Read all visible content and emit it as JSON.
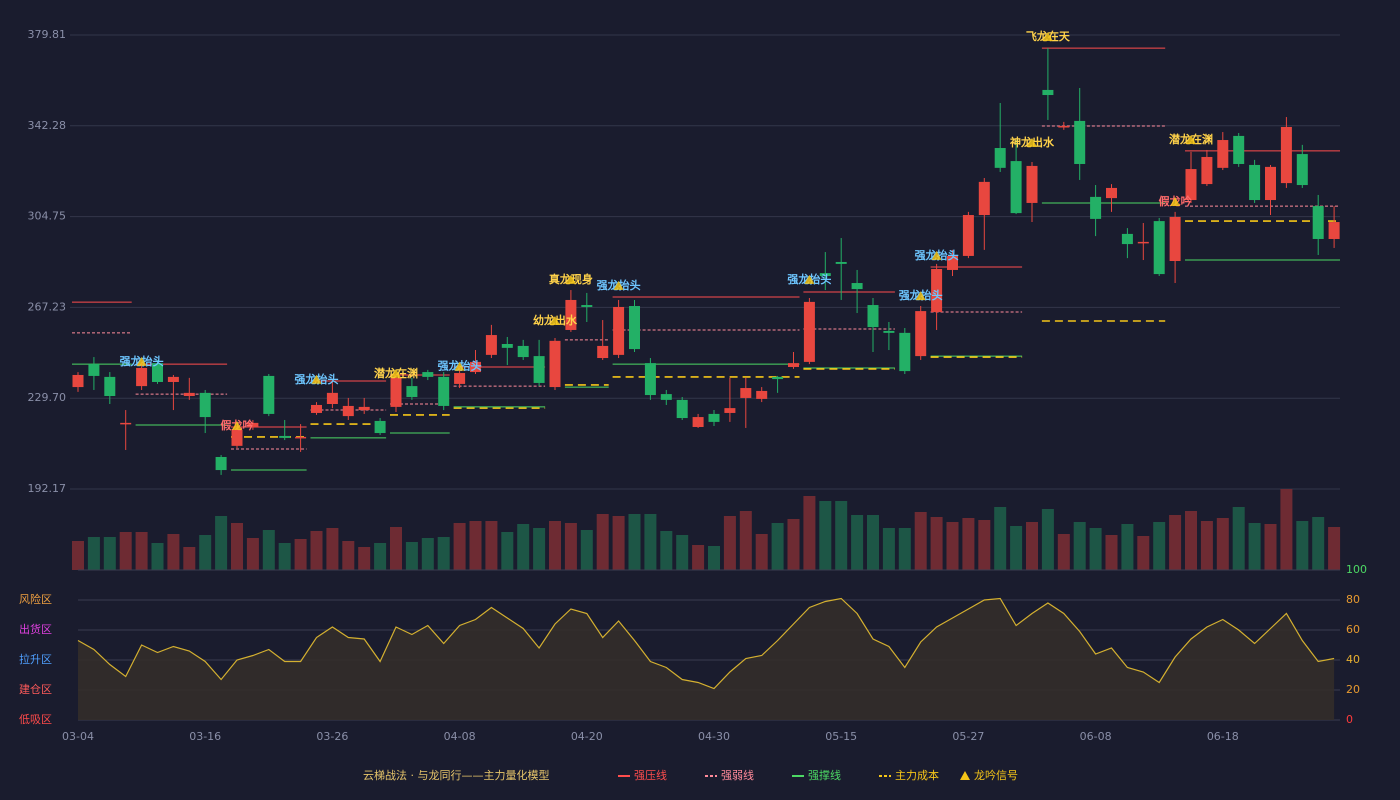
{
  "chart_data": {
    "type": "candlestick",
    "categories": [
      "03-04",
      null,
      null,
      null,
      null,
      null,
      null,
      null,
      "03-16",
      null,
      null,
      null,
      null,
      null,
      null,
      null,
      "03-26",
      null,
      null,
      null,
      null,
      null,
      null,
      null,
      "04-08",
      null,
      null,
      null,
      null,
      null,
      null,
      null,
      "04-20",
      null,
      null,
      null,
      null,
      null,
      null,
      null,
      "04-30",
      null,
      null,
      null,
      null,
      null,
      null,
      null,
      "05-15",
      null,
      null,
      null,
      null,
      null,
      null,
      null,
      "05-27",
      null,
      null,
      null,
      null,
      null,
      null,
      null,
      "06-08",
      null,
      null,
      null,
      null,
      null,
      null,
      null,
      "06-18",
      null,
      null,
      null,
      null,
      null,
      null,
      null
    ],
    "open": [
      234.3,
      243.8,
      238.5,
      219.5,
      234.7,
      244.2,
      236.4,
      230.6,
      231.9,
      205.4,
      210.0,
      217.8,
      238.9,
      214.1,
      213.3,
      223.6,
      227.3,
      222.3,
      224.8,
      220.3,
      226.1,
      234.7,
      240.5,
      238.5,
      235.6,
      240.5,
      247.6,
      252.1,
      251.3,
      247.1,
      234.3,
      257.9,
      268.2,
      246.3,
      247.6,
      267.8,
      244.2,
      231.4,
      229.0,
      217.8,
      223.2,
      223.6,
      229.8,
      229.4,
      238.5,
      242.6,
      244.7,
      281.4,
      286.0,
      277.3,
      268.2,
      257.5,
      256.7,
      247.1,
      265.3,
      282.7,
      288.5,
      305.4,
      333.1,
      327.7,
      310.4,
      357.1,
      341.8,
      344.3,
      312.9,
      312.4,
      297.6,
      294.3,
      302.9,
      286.4,
      311.6,
      318.2,
      324.9,
      338.1,
      326.1,
      311.6,
      318.6,
      330.6,
      309.1,
      295.5
    ],
    "high": [
      240.5,
      246.7,
      240.5,
      224.8,
      244.7,
      245.5,
      239.3,
      238.1,
      233.1,
      206.2,
      218.2,
      220.7,
      239.7,
      220.7,
      219.0,
      228.1,
      237.2,
      229.8,
      229.8,
      221.5,
      238.9,
      238.1,
      241.4,
      240.5,
      242.2,
      249.6,
      260.0,
      255.0,
      253.8,
      253.8,
      254.6,
      274.4,
      273.2,
      262.0,
      270.3,
      270.3,
      246.3,
      233.1,
      230.2,
      223.2,
      224.8,
      238.1,
      238.1,
      234.3,
      238.9,
      248.8,
      271.1,
      290.1,
      295.9,
      282.7,
      271.1,
      261.2,
      258.7,
      267.8,
      285.2,
      291.0,
      306.7,
      320.7,
      351.7,
      336.4,
      327.3,
      374.4,
      343.9,
      357.9,
      317.8,
      318.2,
      300.0,
      302.1,
      304.2,
      306.7,
      331.5,
      332.3,
      339.7,
      339.3,
      328.2,
      326.1,
      345.9,
      334.4,
      313.7,
      309.1
    ],
    "low": [
      232.3,
      233.1,
      227.3,
      208.3,
      233.1,
      235.6,
      224.8,
      229.0,
      215.3,
      198.0,
      209.1,
      216.6,
      222.3,
      212.4,
      207.5,
      222.8,
      225.6,
      220.7,
      223.2,
      214.5,
      224.0,
      229.0,
      237.2,
      224.8,
      233.9,
      239.7,
      246.3,
      243.4,
      245.5,
      234.7,
      233.1,
      257.1,
      261.2,
      245.5,
      246.3,
      248.8,
      229.0,
      226.9,
      220.7,
      217.4,
      218.2,
      219.9,
      217.4,
      228.1,
      231.9,
      241.8,
      243.8,
      274.4,
      270.3,
      264.9,
      248.8,
      249.6,
      239.7,
      245.5,
      257.9,
      280.2,
      287.6,
      291.0,
      323.2,
      305.8,
      302.5,
      344.7,
      340.6,
      319.9,
      296.7,
      306.7,
      287.6,
      286.8,
      280.2,
      277.3,
      310.4,
      317.4,
      324.0,
      325.3,
      310.4,
      305.4,
      316.6,
      316.6,
      288.9,
      291.8
    ],
    "close": [
      239.3,
      238.9,
      230.6,
      219.5,
      242.2,
      236.4,
      238.5,
      231.9,
      221.9,
      200.0,
      216.6,
      219.5,
      223.2,
      213.3,
      213.7,
      226.9,
      231.9,
      226.5,
      226.1,
      215.3,
      238.1,
      230.2,
      238.5,
      226.5,
      240.1,
      244.7,
      255.8,
      250.5,
      246.7,
      236.0,
      253.4,
      270.3,
      267.4,
      251.3,
      267.4,
      250.0,
      231.0,
      229.0,
      221.5,
      221.9,
      219.9,
      225.6,
      233.9,
      232.7,
      237.6,
      244.2,
      269.5,
      280.2,
      285.2,
      274.8,
      259.1,
      256.7,
      240.9,
      265.7,
      283.1,
      288.5,
      305.4,
      319.1,
      324.9,
      306.2,
      325.7,
      355.0,
      342.2,
      326.5,
      303.8,
      316.6,
      293.4,
      294.3,
      281.0,
      304.6,
      324.4,
      329.4,
      336.4,
      326.5,
      311.6,
      325.3,
      341.8,
      317.8,
      295.5,
      302.5
    ],
    "up_color": "#e8473f",
    "down_color": "#23b066",
    "ylim": [
      192.17,
      379.81
    ],
    "yticks": [
      192.17,
      {
        "value": 229.7,
        "label": "229.70"
      },
      267.23,
      304.75,
      342.28,
      379.81
    ],
    "grid": true,
    "volume": {
      "values": [
        29,
        33,
        33,
        38,
        38,
        27,
        36,
        23,
        35,
        54,
        47,
        32,
        40,
        27,
        31,
        39,
        42,
        29,
        23,
        27,
        43,
        28,
        32,
        33,
        47,
        49,
        49,
        38,
        46,
        42,
        49,
        47,
        40,
        56,
        54,
        56,
        56,
        39,
        35,
        25,
        24,
        54,
        59,
        36,
        47,
        51,
        74,
        69,
        69,
        55,
        55,
        42,
        42,
        58,
        53,
        48,
        52,
        50,
        63,
        44,
        48,
        61,
        36,
        48,
        42,
        35,
        46,
        34,
        48,
        55,
        59,
        49,
        52,
        63,
        47,
        46,
        81,
        49,
        53,
        43
      ],
      "up_color": "#6e2b33",
      "down_color": "#1d5646"
    },
    "oscillator": {
      "values": [
        53,
        47,
        37,
        29,
        50,
        45,
        49,
        46,
        39,
        27,
        40,
        43,
        47,
        39,
        39,
        55,
        62,
        55,
        54,
        39,
        62,
        57,
        63,
        51,
        63,
        67,
        75,
        68,
        61,
        48,
        64,
        74,
        71,
        55,
        66,
        53,
        39,
        35,
        27,
        25,
        21,
        32,
        41,
        43,
        53,
        64,
        75,
        79,
        81,
        71,
        54,
        49,
        35,
        52,
        62,
        68,
        74,
        80,
        81,
        63,
        71,
        78,
        71,
        59,
        44,
        48,
        35,
        32,
        25,
        42,
        54,
        62,
        67,
        60,
        51,
        61,
        71,
        53,
        39,
        41
      ],
      "color": "#d4b030",
      "fill": "#332e2a",
      "ylim": [
        0,
        100
      ],
      "yticks": [
        0,
        20,
        40,
        60,
        80,
        100
      ],
      "ytick_colors": [
        "#ff3b3b",
        "#e89a30",
        "#e8b030",
        "#e89a30",
        "#e89a30",
        "#4cd964"
      ],
      "zones": [
        {
          "label": "风险区",
          "value": 80,
          "color": "#f0a040"
        },
        {
          "label": "出货区",
          "value": 60,
          "color": "#e040e0"
        },
        {
          "label": "拉升区",
          "value": 40,
          "color": "#4f9fff"
        },
        {
          "label": "建仓区",
          "value": 20,
          "color": "#ff5a5a"
        },
        {
          "label": "低吸区",
          "value": 0,
          "color": "#ff4a4a"
        }
      ]
    },
    "lines": [
      {
        "name": "强压线",
        "color": "#ff4d4d",
        "dash": false,
        "segments": [
          {
            "from": 0,
            "to": 3,
            "value": 269.4
          },
          {
            "from": 4,
            "to": 9,
            "value": 243.8
          },
          {
            "from": 10,
            "to": 14,
            "value": 217.8
          },
          {
            "from": 15,
            "to": 19,
            "value": 236.8
          },
          {
            "from": 20,
            "to": 23,
            "value": 239.3
          },
          {
            "from": 24,
            "to": 29,
            "value": 242.6
          },
          {
            "from": 34,
            "to": 45,
            "value": 271.5
          },
          {
            "from": 46,
            "to": 51,
            "value": 273.6
          },
          {
            "from": 54,
            "to": 59,
            "value": 283.9
          },
          {
            "from": 61,
            "to": 68,
            "value": 374.4
          },
          {
            "from": 70,
            "to": 79,
            "value": 331.9
          }
        ]
      },
      {
        "name": "强弱线",
        "color": "#ff8a9a",
        "dash": true,
        "segments": [
          {
            "from": 0,
            "to": 3,
            "value": 256.7
          },
          {
            "from": 4,
            "to": 9,
            "value": 231.4
          },
          {
            "from": 10,
            "to": 14,
            "value": 208.7
          },
          {
            "from": 15,
            "to": 19,
            "value": 224.8
          },
          {
            "from": 20,
            "to": 23,
            "value": 227.3
          },
          {
            "from": 24,
            "to": 29,
            "value": 234.7
          },
          {
            "from": 31,
            "to": 33,
            "value": 253.8
          },
          {
            "from": 34,
            "to": 45,
            "value": 257.9
          },
          {
            "from": 46,
            "to": 51,
            "value": 258.3
          },
          {
            "from": 54,
            "to": 59,
            "value": 265.3
          },
          {
            "from": 61,
            "to": 68,
            "value": 342.2
          },
          {
            "from": 70,
            "to": 79,
            "value": 309.1
          }
        ]
      },
      {
        "name": "强撑线",
        "color": "#4cd964",
        "dash": false,
        "segments": [
          {
            "from": 0,
            "to": 3,
            "value": 243.8
          },
          {
            "from": 4,
            "to": 9,
            "value": 218.6
          },
          {
            "from": 10,
            "to": 14,
            "value": 200.0
          },
          {
            "from": 15,
            "to": 19,
            "value": 213.3
          },
          {
            "from": 20,
            "to": 23,
            "value": 215.3
          },
          {
            "from": 24,
            "to": 29,
            "value": 226.1
          },
          {
            "from": 31,
            "to": 33,
            "value": 234.3
          },
          {
            "from": 34,
            "to": 45,
            "value": 243.8
          },
          {
            "from": 46,
            "to": 51,
            "value": 242.2
          },
          {
            "from": 54,
            "to": 59,
            "value": 247.1
          },
          {
            "from": 61,
            "to": 68,
            "value": 310.4
          },
          {
            "from": 70,
            "to": 79,
            "value": 286.8
          }
        ]
      },
      {
        "name": "主力成本",
        "color": "#f5c518",
        "dash": true,
        "segments": [
          {
            "from": 10,
            "to": 14,
            "value": 213.7
          },
          {
            "from": 15,
            "to": 19,
            "value": 219.0
          },
          {
            "from": 20,
            "to": 23,
            "value": 222.8
          },
          {
            "from": 24,
            "to": 29,
            "value": 225.6
          },
          {
            "from": 31,
            "to": 33,
            "value": 235.2
          },
          {
            "from": 34,
            "to": 45,
            "value": 238.5
          },
          {
            "from": 46,
            "to": 51,
            "value": 241.8
          },
          {
            "from": 54,
            "to": 59,
            "value": 246.7
          },
          {
            "from": 61,
            "to": 68,
            "value": 261.6
          },
          {
            "from": 70,
            "to": 79,
            "value": 302.9
          }
        ]
      }
    ],
    "signals": {
      "name": "龙吟信号",
      "color": "#f5c518",
      "items": [
        {
          "text": "强龙抬头",
          "at": 4,
          "value": 244.7,
          "color": "#6ec6ff"
        },
        {
          "text": "假龙吟",
          "at": 10,
          "value": 218.2,
          "color": "#ff6b6b"
        },
        {
          "text": "强龙抬头",
          "at": 15,
          "value": 237.3,
          "color": "#6ec6ff"
        },
        {
          "text": "潜龙在渊",
          "at": 20,
          "value": 239.8,
          "color": "#ffd24a"
        },
        {
          "text": "强龙抬头",
          "at": 24,
          "value": 242.7,
          "color": "#6ec6ff"
        },
        {
          "text": "幼龙出水",
          "at": 30,
          "value": 261.6,
          "color": "#ffd24a"
        },
        {
          "text": "真龙现身",
          "at": 31,
          "value": 278.6,
          "color": "#ffd24a"
        },
        {
          "text": "强龙抬头",
          "at": 34,
          "value": 276.1,
          "color": "#6ec6ff"
        },
        {
          "text": "强龙抬头",
          "at": 46,
          "value": 278.6,
          "color": "#6ec6ff"
        },
        {
          "text": "强龙抬头",
          "at": 53,
          "value": 271.9,
          "color": "#6ec6ff"
        },
        {
          "text": "强龙抬头",
          "at": 54,
          "value": 288.5,
          "color": "#6ec6ff"
        },
        {
          "text": "神龙出水",
          "at": 60,
          "value": 335.2,
          "color": "#ffd24a"
        },
        {
          "text": "飞龙在天",
          "at": 61,
          "value": 379.0,
          "color": "#ffd24a"
        },
        {
          "text": "潜龙在渊",
          "at": 70,
          "value": 336.4,
          "color": "#ffd24a"
        },
        {
          "text": "假龙吟",
          "at": 69,
          "value": 310.8,
          "color": "#ff6b6b"
        }
      ]
    },
    "legend_title": "云梯战法 · 与龙同行——主力量化模型"
  }
}
